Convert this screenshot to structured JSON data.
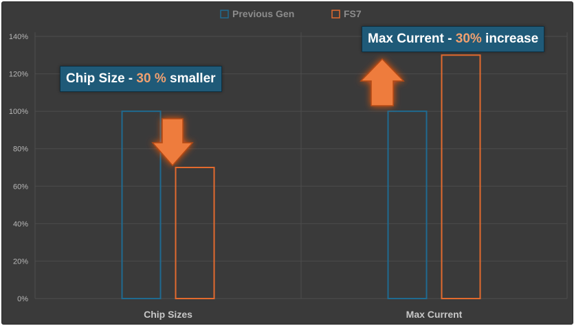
{
  "colors": {
    "background": "#3a3a3a",
    "grid": "#4d4d4d",
    "previous_gen": "#1f6b91",
    "fs7": "#e36a2e",
    "callout_bg": "#1f5a78",
    "arrow_fill": "#ee7b3c"
  },
  "chart_data": {
    "type": "bar",
    "title": "",
    "xlabel": "",
    "ylabel": "",
    "categories": [
      "Chip Sizes",
      "Max Current"
    ],
    "series": [
      {
        "name": "Previous Gen",
        "values": [
          100,
          100
        ]
      },
      {
        "name": "FS7",
        "values": [
          70,
          130
        ]
      }
    ],
    "ylim": [
      0,
      140
    ],
    "y_ticks": [
      "0%",
      "20%",
      "40%",
      "60%",
      "80%",
      "100%",
      "120%",
      "140%"
    ],
    "grid": true,
    "legend": "top-center",
    "bar_style": "outline"
  },
  "annotations": {
    "chip": {
      "prefix": "Chip Size - ",
      "accent": "30 %",
      "suffix": " smaller",
      "arrow": "down"
    },
    "max": {
      "prefix": "Max Current - ",
      "accent": "30%",
      "suffix": " increase",
      "arrow": "up"
    }
  }
}
